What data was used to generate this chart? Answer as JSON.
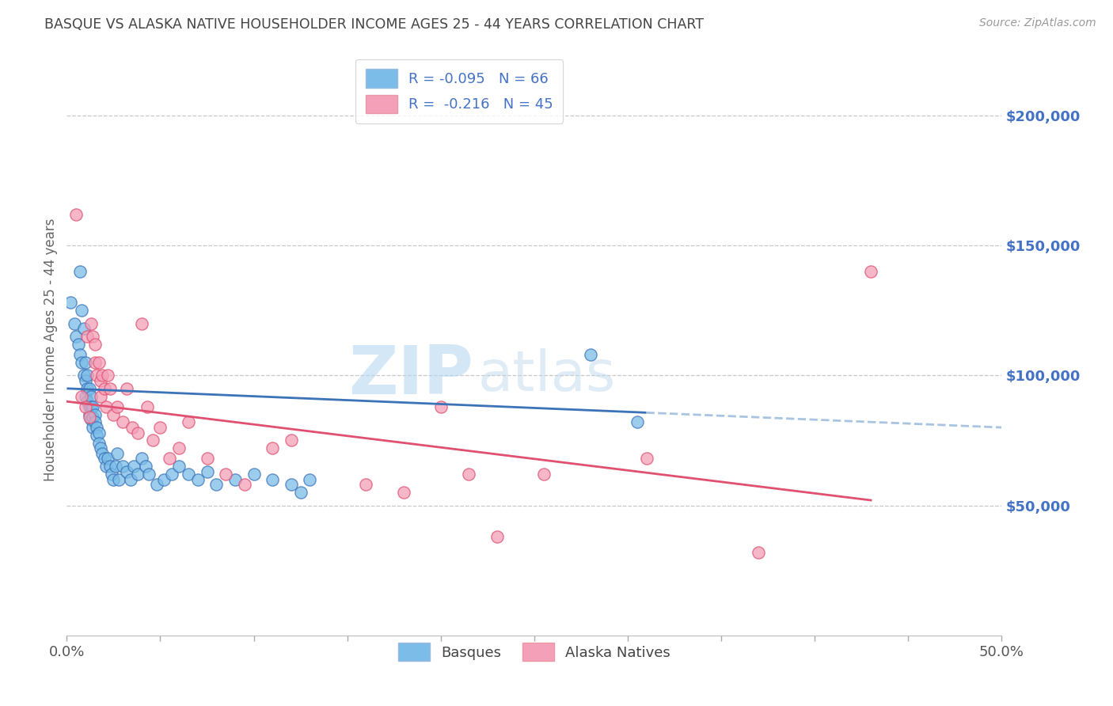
{
  "title": "BASQUE VS ALASKA NATIVE HOUSEHOLDER INCOME AGES 25 - 44 YEARS CORRELATION CHART",
  "source": "Source: ZipAtlas.com",
  "ylabel": "Householder Income Ages 25 - 44 years",
  "yaxis_labels": [
    "$50,000",
    "$100,000",
    "$150,000",
    "$200,000"
  ],
  "yaxis_values": [
    50000,
    100000,
    150000,
    200000
  ],
  "ylim": [
    0,
    220000
  ],
  "xlim": [
    0.0,
    0.5
  ],
  "watermark_zip": "ZIP",
  "watermark_atlas": "atlas",
  "legend_1_label": "R = -0.095   N = 66",
  "legend_2_label": "R =  -0.216   N = 45",
  "legend_1_color": "#7bbde8",
  "legend_2_color": "#f4a0b8",
  "trend_1_color": "#3b72b8",
  "trend_2_color": "#e05070",
  "trend_1_dashed_color": "#a8c4e0",
  "background_color": "#ffffff",
  "grid_color": "#c8c8c8",
  "title_color": "#444444",
  "right_label_color": "#4472c4",
  "scatter_alpha": 0.75,
  "scatter_size": 120,
  "basques_x": [
    0.002,
    0.004,
    0.005,
    0.006,
    0.007,
    0.007,
    0.008,
    0.008,
    0.009,
    0.009,
    0.01,
    0.01,
    0.01,
    0.011,
    0.011,
    0.011,
    0.012,
    0.012,
    0.012,
    0.013,
    0.013,
    0.013,
    0.014,
    0.014,
    0.014,
    0.015,
    0.015,
    0.016,
    0.016,
    0.017,
    0.017,
    0.018,
    0.019,
    0.02,
    0.021,
    0.022,
    0.023,
    0.024,
    0.025,
    0.026,
    0.027,
    0.028,
    0.03,
    0.032,
    0.034,
    0.036,
    0.038,
    0.04,
    0.042,
    0.044,
    0.048,
    0.052,
    0.056,
    0.06,
    0.065,
    0.07,
    0.075,
    0.08,
    0.09,
    0.1,
    0.11,
    0.12,
    0.125,
    0.13,
    0.28,
    0.305
  ],
  "basques_y": [
    128000,
    120000,
    115000,
    112000,
    140000,
    108000,
    125000,
    105000,
    118000,
    100000,
    105000,
    98000,
    92000,
    100000,
    95000,
    90000,
    95000,
    88000,
    85000,
    92000,
    88000,
    83000,
    88000,
    84000,
    80000,
    85000,
    82000,
    80000,
    77000,
    78000,
    74000,
    72000,
    70000,
    68000,
    65000,
    68000,
    65000,
    62000,
    60000,
    65000,
    70000,
    60000,
    65000,
    63000,
    60000,
    65000,
    62000,
    68000,
    65000,
    62000,
    58000,
    60000,
    62000,
    65000,
    62000,
    60000,
    63000,
    58000,
    60000,
    62000,
    60000,
    58000,
    55000,
    60000,
    108000,
    82000
  ],
  "alaska_x": [
    0.005,
    0.008,
    0.01,
    0.011,
    0.012,
    0.013,
    0.014,
    0.015,
    0.015,
    0.016,
    0.017,
    0.018,
    0.018,
    0.019,
    0.02,
    0.021,
    0.022,
    0.023,
    0.025,
    0.027,
    0.03,
    0.032,
    0.035,
    0.038,
    0.04,
    0.043,
    0.046,
    0.05,
    0.055,
    0.06,
    0.065,
    0.075,
    0.085,
    0.095,
    0.11,
    0.12,
    0.16,
    0.18,
    0.2,
    0.215,
    0.23,
    0.255,
    0.31,
    0.37,
    0.43
  ],
  "alaska_y": [
    162000,
    92000,
    88000,
    115000,
    84000,
    120000,
    115000,
    112000,
    105000,
    100000,
    105000,
    98000,
    92000,
    100000,
    95000,
    88000,
    100000,
    95000,
    85000,
    88000,
    82000,
    95000,
    80000,
    78000,
    120000,
    88000,
    75000,
    80000,
    68000,
    72000,
    82000,
    68000,
    62000,
    58000,
    72000,
    75000,
    58000,
    55000,
    88000,
    62000,
    38000,
    62000,
    68000,
    32000,
    140000
  ],
  "trend1_x0": 0.0,
  "trend1_x1": 0.5,
  "trend1_y0": 95000,
  "trend1_y1": 80000,
  "trend1_solid_end": 0.31,
  "trend2_x0": 0.0,
  "trend2_x1": 0.43,
  "trend2_y0": 90000,
  "trend2_y1": 52000
}
